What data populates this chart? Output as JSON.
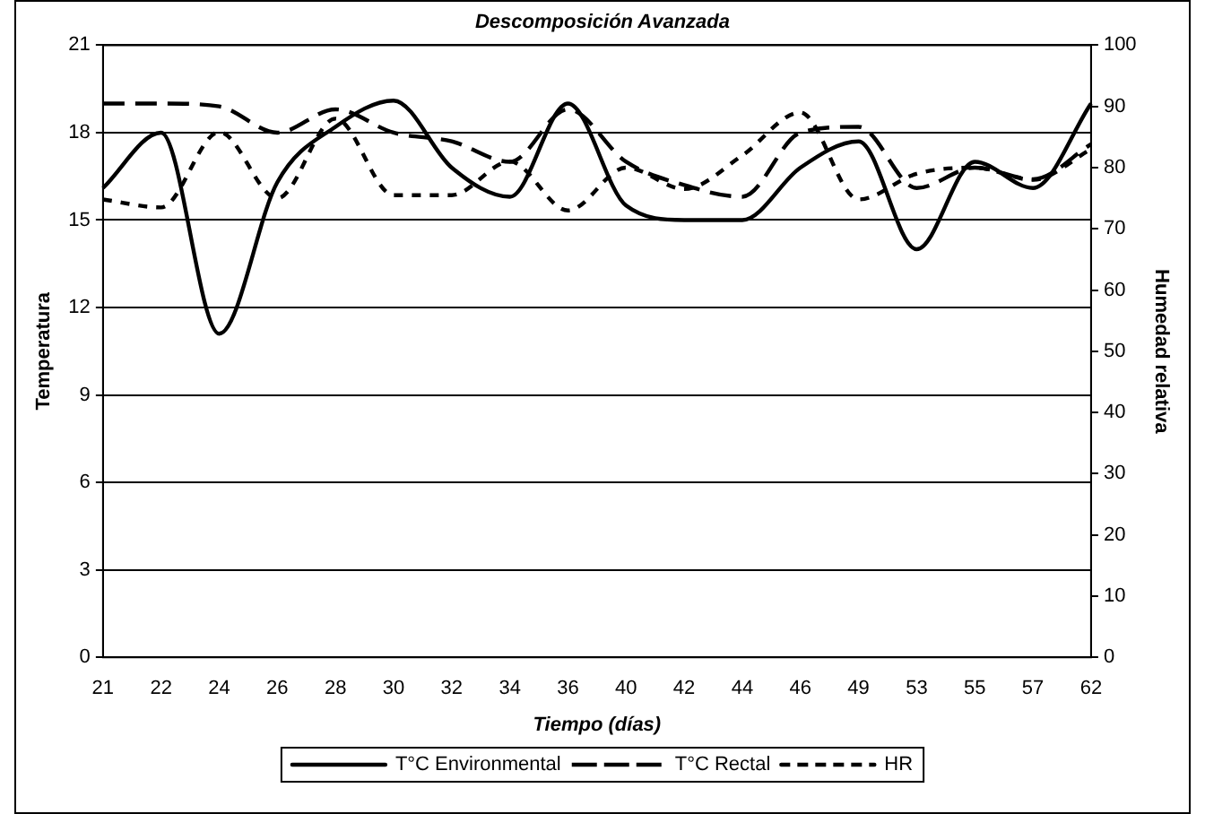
{
  "chart_data": {
    "type": "line",
    "title": "Descomposición Avanzada",
    "xlabel": "Tiempo (días)",
    "ylabel": "Temperatura",
    "y2label": "Humedad relativa",
    "categories": [
      "21",
      "22",
      "24",
      "26",
      "28",
      "30",
      "32",
      "34",
      "36",
      "40",
      "42",
      "44",
      "46",
      "49",
      "53",
      "55",
      "57",
      "62"
    ],
    "series": [
      {
        "name": "T°C Environmental",
        "color": "#000000",
        "line_style": "solid",
        "values": [
          16.1,
          18.0,
          11.1,
          16.3,
          18.2,
          19.1,
          16.8,
          15.8,
          19.0,
          15.5,
          15.0,
          15.0,
          16.8,
          17.7,
          14.0,
          17.0,
          16.1,
          19.0
        ]
      },
      {
        "name": "T°C Rectal",
        "color": "#000000",
        "line_style": "dashed",
        "values": [
          19.0,
          19.0,
          18.9,
          18.0,
          18.8,
          18.0,
          17.7,
          17.0,
          18.8,
          17.0,
          16.2,
          15.8,
          18.0,
          18.2,
          16.1,
          16.8,
          16.4,
          17.6
        ]
      },
      {
        "name": "HR",
        "color": "#000000",
        "line_style": "dotted",
        "axis": "y2",
        "values": [
          74.8,
          73.5,
          85.8,
          75.0,
          88.0,
          75.5,
          75.5,
          81.0,
          73.0,
          80.0,
          76.5,
          82.0,
          89.0,
          74.8,
          79.0,
          80.0,
          78.0,
          83.0
        ]
      }
    ],
    "ylim": [
      0,
      21
    ],
    "yticks": [
      0,
      3,
      6,
      9,
      12,
      15,
      18,
      21
    ],
    "y2lim": [
      0,
      100
    ],
    "y2ticks": [
      0,
      10,
      20,
      30,
      40,
      50,
      60,
      70,
      80,
      90,
      100
    ],
    "grid": "y",
    "legend": "bottom"
  }
}
